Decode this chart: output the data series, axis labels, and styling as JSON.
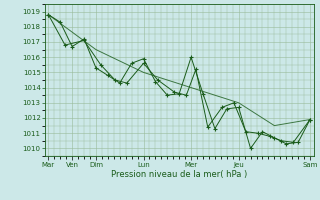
{
  "xlabel": "Pression niveau de la mer( hPa )",
  "background_color": "#cce8e8",
  "grid_color": "#99bb99",
  "line_color": "#1a5c1a",
  "marker_color": "#1a5c1a",
  "ylim": [
    1009.5,
    1019.5
  ],
  "yticks": [
    1010,
    1011,
    1012,
    1013,
    1014,
    1015,
    1016,
    1017,
    1018,
    1019
  ],
  "xtick_day_positions": [
    0,
    1,
    2,
    4,
    6,
    8,
    11
  ],
  "xtick_day_labels": [
    "Mar",
    "Ven",
    "Dim",
    "Lun",
    "Mer",
    "Jeu",
    "Sam"
  ],
  "xlim": [
    -0.15,
    11.15
  ],
  "series1": [
    [
      0.0,
      1018.8
    ],
    [
      0.5,
      1018.3
    ],
    [
      1.0,
      1016.7
    ],
    [
      1.5,
      1017.2
    ],
    [
      2.0,
      1015.3
    ],
    [
      2.5,
      1014.8
    ],
    [
      3.0,
      1014.3
    ],
    [
      3.5,
      1015.6
    ],
    [
      4.0,
      1015.9
    ],
    [
      4.5,
      1014.4
    ],
    [
      5.0,
      1013.5
    ],
    [
      5.5,
      1013.6
    ],
    [
      6.0,
      1016.0
    ],
    [
      6.5,
      1013.6
    ],
    [
      7.0,
      1011.3
    ],
    [
      7.5,
      1012.6
    ],
    [
      8.0,
      1012.7
    ],
    [
      8.5,
      1010.0
    ],
    [
      9.0,
      1011.1
    ],
    [
      9.5,
      1010.7
    ],
    [
      10.0,
      1010.3
    ],
    [
      10.5,
      1010.4
    ],
    [
      11.0,
      1011.9
    ]
  ],
  "series2": [
    [
      0.0,
      1018.8
    ],
    [
      0.7,
      1016.8
    ],
    [
      1.5,
      1017.1
    ],
    [
      2.2,
      1015.5
    ],
    [
      2.8,
      1014.5
    ],
    [
      3.3,
      1014.3
    ],
    [
      4.0,
      1015.6
    ],
    [
      4.6,
      1014.5
    ],
    [
      5.3,
      1013.7
    ],
    [
      5.8,
      1013.5
    ],
    [
      6.2,
      1015.2
    ],
    [
      6.7,
      1011.4
    ],
    [
      7.3,
      1012.7
    ],
    [
      7.8,
      1013.0
    ],
    [
      8.3,
      1011.1
    ],
    [
      8.8,
      1011.0
    ],
    [
      9.3,
      1010.8
    ],
    [
      9.8,
      1010.5
    ],
    [
      10.3,
      1010.4
    ],
    [
      11.0,
      1011.9
    ]
  ],
  "series_trend": [
    [
      0.0,
      1018.8
    ],
    [
      2.0,
      1016.5
    ],
    [
      4.0,
      1015.0
    ],
    [
      6.0,
      1014.0
    ],
    [
      8.0,
      1013.0
    ],
    [
      9.5,
      1011.5
    ],
    [
      11.0,
      1011.9
    ]
  ]
}
